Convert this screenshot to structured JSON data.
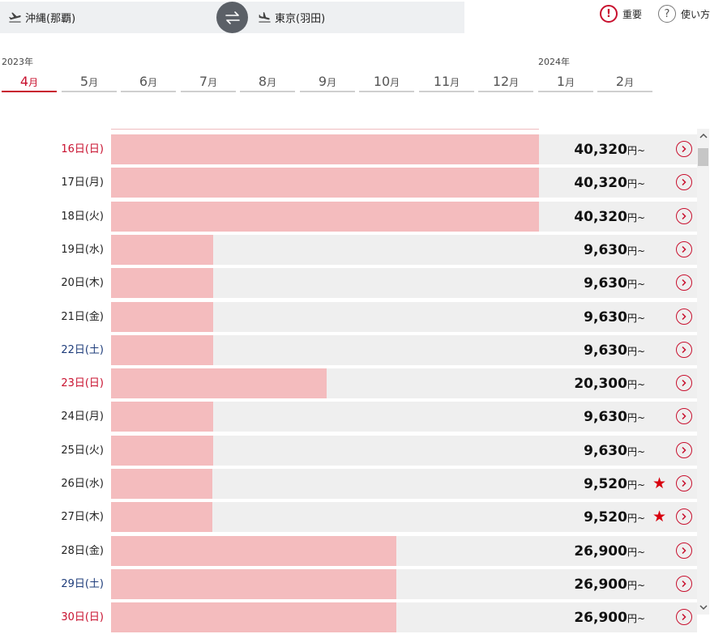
{
  "route": {
    "from": "沖縄(那覇)",
    "to": "東京(羽田)"
  },
  "top_links": {
    "important": "重要",
    "howto": "使い方"
  },
  "years": {
    "y2023": "2023年",
    "y2024": "2024年"
  },
  "months": [
    {
      "num": "4",
      "unit": "月"
    },
    {
      "num": "5",
      "unit": "月"
    },
    {
      "num": "6",
      "unit": "月"
    },
    {
      "num": "7",
      "unit": "月"
    },
    {
      "num": "8",
      "unit": "月"
    },
    {
      "num": "9",
      "unit": "月"
    },
    {
      "num": "10",
      "unit": "月"
    },
    {
      "num": "11",
      "unit": "月"
    },
    {
      "num": "12",
      "unit": "月"
    },
    {
      "num": "1",
      "unit": "月"
    },
    {
      "num": "2",
      "unit": "月"
    }
  ],
  "price_unit": "円~",
  "chart_data": {
    "type": "bar",
    "orientation": "horizontal",
    "unit": "円",
    "max_value": 40320,
    "categories": [
      "16日(日)",
      "17日(月)",
      "18日(火)",
      "19日(水)",
      "20日(木)",
      "21日(金)",
      "22日(土)",
      "23日(日)",
      "24日(月)",
      "25日(火)",
      "26日(水)",
      "27日(木)",
      "28日(金)",
      "29日(土)",
      "30日(日)"
    ],
    "values": [
      40320,
      40320,
      40320,
      9630,
      9630,
      9630,
      9630,
      20300,
      9630,
      9630,
      9520,
      9520,
      26900,
      26900,
      26900
    ],
    "value_labels": [
      "40,320",
      "40,320",
      "40,320",
      "9,630",
      "9,630",
      "9,630",
      "9,630",
      "20,300",
      "9,630",
      "9,630",
      "9,520",
      "9,520",
      "26,900",
      "26,900",
      "26,900"
    ],
    "day_types": [
      "sun",
      "",
      "",
      "",
      "",
      "",
      "sat",
      "sun",
      "",
      "",
      "",
      "",
      "",
      "sat",
      "sun"
    ],
    "lowest_marked": [
      false,
      false,
      false,
      false,
      false,
      false,
      false,
      false,
      false,
      false,
      true,
      true,
      false,
      false,
      false
    ]
  },
  "colors": {
    "accent": "#c8102e",
    "bar": "#f4bcbe",
    "row_bg": "#efefef",
    "saturday": "#1e3c7a"
  }
}
